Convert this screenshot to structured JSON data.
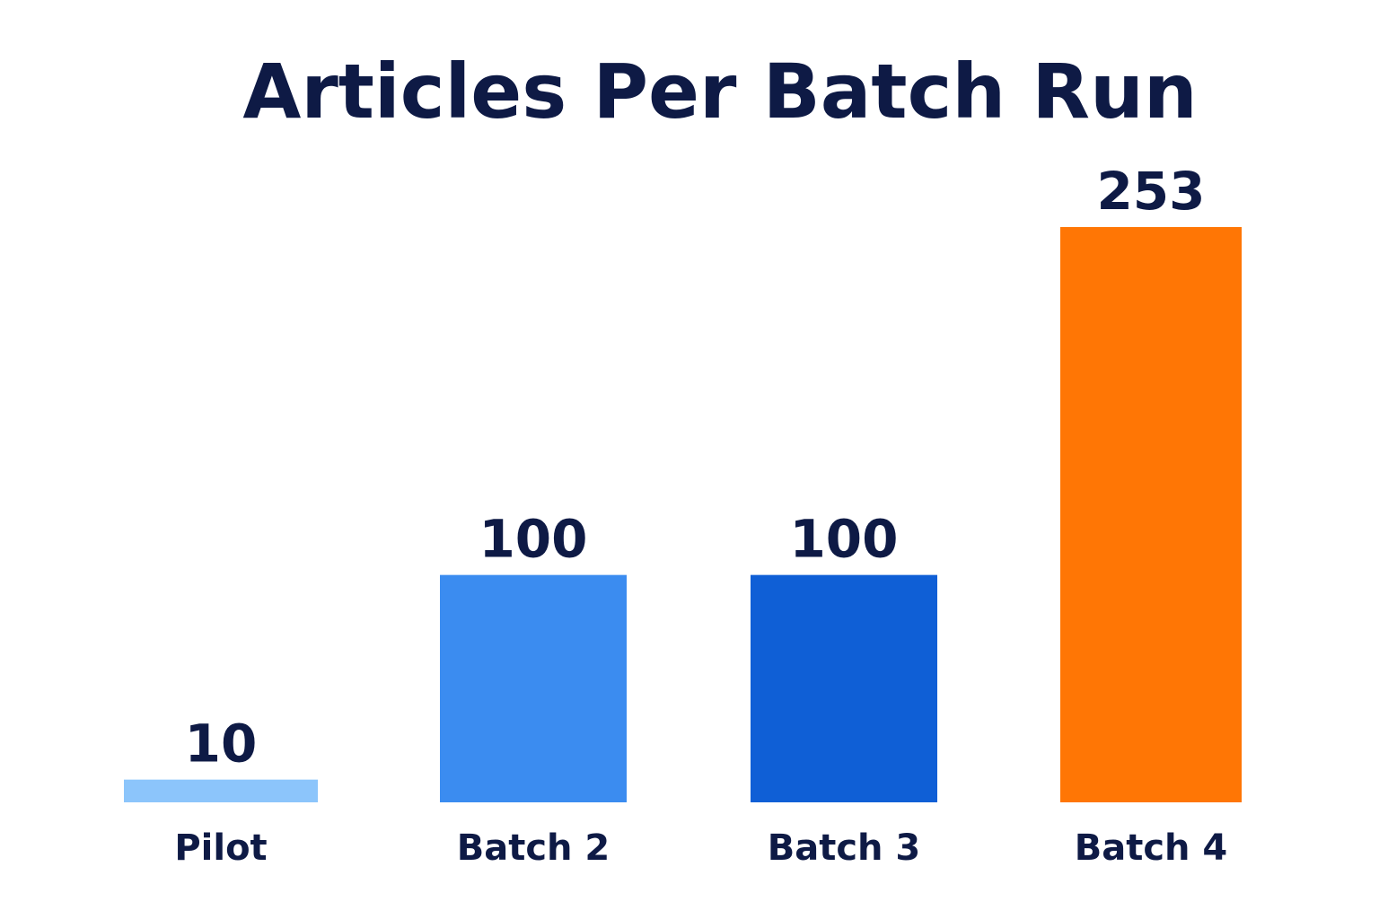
{
  "chart_data": {
    "type": "bar",
    "title": "Articles Per Batch Run",
    "xlabel": "",
    "ylabel": "",
    "categories": [
      "Pilot",
      "Batch 2",
      "Batch 3",
      "Batch 4"
    ],
    "values": [
      10,
      100,
      100,
      253
    ],
    "value_labels": [
      "10",
      "100",
      "100",
      "253"
    ],
    "colors": [
      "#8cc5fb",
      "#3b8cf0",
      "#0f5fd6",
      "#ff7605"
    ],
    "grid": false,
    "legend": "none"
  }
}
